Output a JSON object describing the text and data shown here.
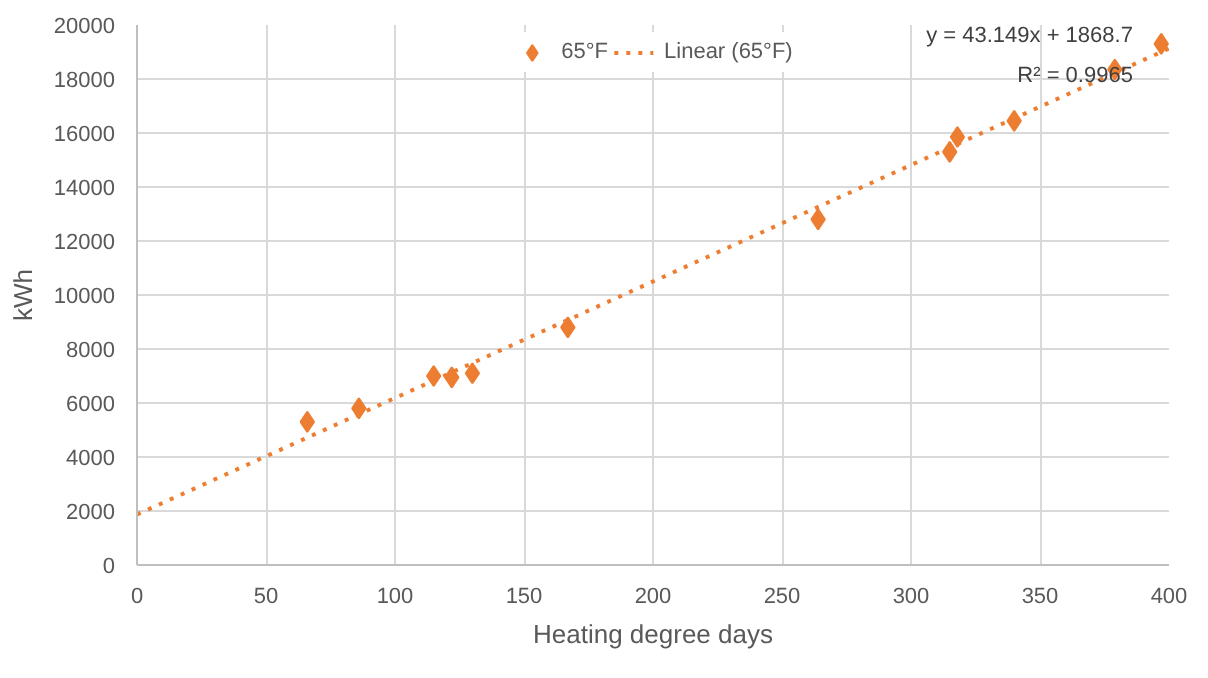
{
  "chart_data": {
    "type": "scatter",
    "xlabel": "Heating degree days",
    "ylabel": "kWh",
    "xlim": [
      0,
      400
    ],
    "xticks": [
      0,
      50,
      100,
      150,
      200,
      250,
      300,
      350,
      400
    ],
    "ylim": [
      0,
      20000
    ],
    "yticks": [
      0,
      2000,
      4000,
      6000,
      8000,
      10000,
      12000,
      14000,
      16000,
      18000,
      20000
    ],
    "grid": true,
    "legend": "top",
    "marker": "diamond",
    "series": [
      {
        "name": "65°F",
        "color": "#ed7d31",
        "x": [
          66,
          86,
          115,
          122,
          130,
          167,
          264,
          315,
          318,
          340,
          379,
          397
        ],
        "values": [
          5300,
          5800,
          7000,
          6950,
          7100,
          8800,
          12800,
          15300,
          15850,
          16450,
          18350,
          19300
        ]
      },
      {
        "name": "Linear (65°F)",
        "type": "line",
        "line_style": "dotted",
        "marker": "none",
        "color": "#ed7d31",
        "x": [
          0,
          400
        ],
        "values": [
          1870,
          19130
        ]
      }
    ],
    "annotations": [
      "y = 43.149x + 1868.7",
      "R² = 0.9965"
    ]
  }
}
